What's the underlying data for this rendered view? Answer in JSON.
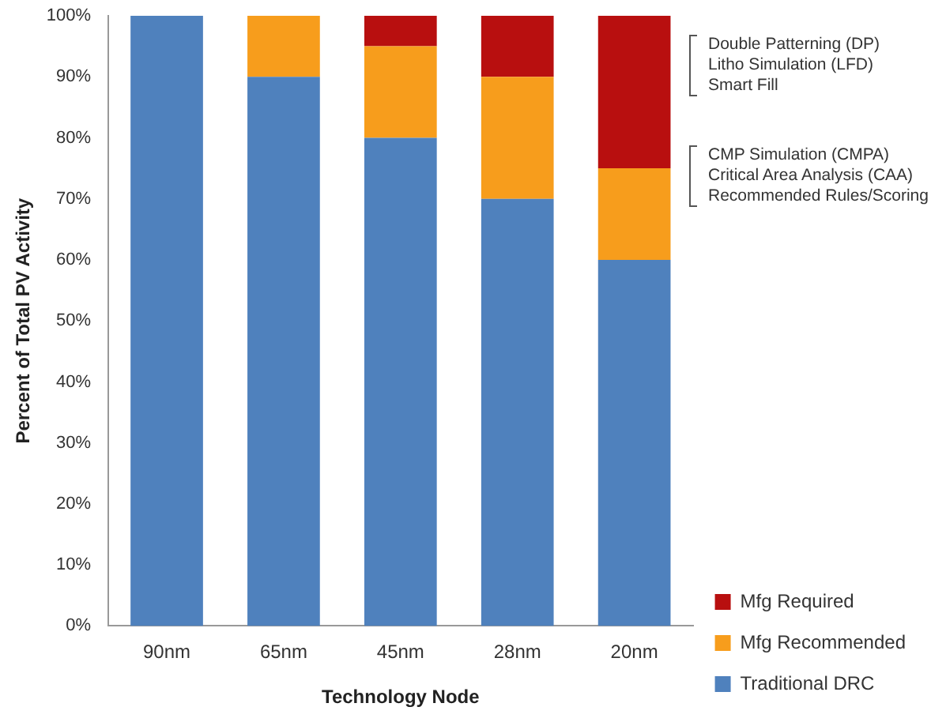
{
  "chart_data": {
    "type": "bar",
    "stacked": true,
    "categories": [
      "90nm",
      "65nm",
      "45nm",
      "28nm",
      "20nm"
    ],
    "series": [
      {
        "name": "Traditional DRC",
        "color": "#4f81bd",
        "values": [
          100,
          90,
          80,
          70,
          60
        ]
      },
      {
        "name": "Mfg Recommended",
        "color": "#f79d1c",
        "values": [
          0,
          10,
          15,
          20,
          15
        ]
      },
      {
        "name": "Mfg Required",
        "color": "#b80f0f",
        "values": [
          0,
          0,
          5,
          10,
          25
        ]
      }
    ],
    "xlabel": "Technology Node",
    "ylabel": "Percent of Total PV Activity",
    "ylim": [
      0,
      100
    ],
    "yticks": [
      {
        "value": 0,
        "label": "0%"
      },
      {
        "value": 10,
        "label": "10%"
      },
      {
        "value": 20,
        "label": "20%"
      },
      {
        "value": 30,
        "label": "30%"
      },
      {
        "value": 40,
        "label": "40%"
      },
      {
        "value": 50,
        "label": "50%"
      },
      {
        "value": 60,
        "label": "60%"
      },
      {
        "value": 70,
        "label": "70%"
      },
      {
        "value": 80,
        "label": "80%"
      },
      {
        "value": 90,
        "label": "90%"
      },
      {
        "value": 100,
        "label": "100%"
      }
    ],
    "legend": "bottom right",
    "annotations": [
      "Double Patterning (DP)\nLitho Simulation (LFD)\nSmart Fill",
      "CMP Simulation (CMPA)\nCritical Area Analysis (CAA)\nRecommended Rules/Scoring"
    ]
  }
}
